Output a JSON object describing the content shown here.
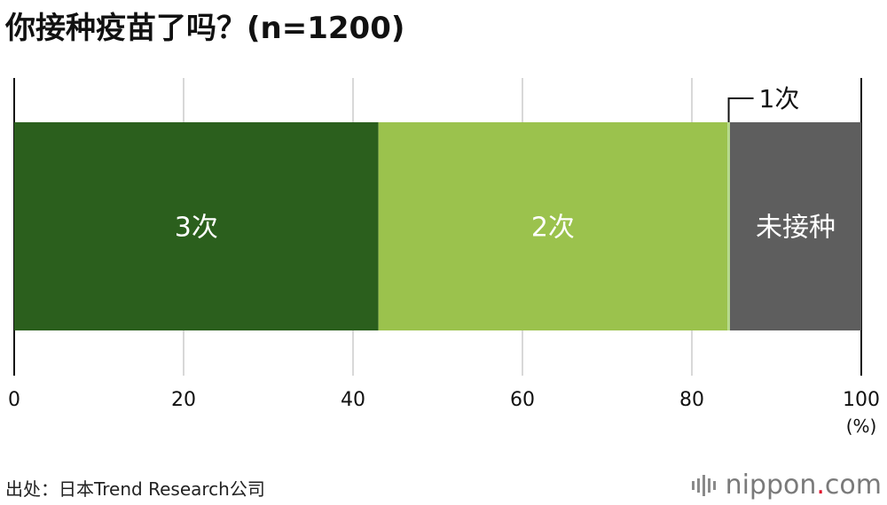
{
  "title": "你接种疫苗了吗？(n=1200)",
  "source": "出处：日本Trend Research公司",
  "logo": {
    "name": "nippon",
    "dot": ".",
    "tld": "com"
  },
  "colors": {
    "three_doses": "#2b5f1d",
    "two_doses": "#9bc24d",
    "one_dose": "#b5d98a",
    "unvaccinated": "#5e5e5e",
    "grid": "#cccccc",
    "axis": "#111111",
    "logo_dot": "#e0102c"
  },
  "chart_data": {
    "type": "bar",
    "orientation": "horizontal-stacked",
    "title": "你接种疫苗了吗？(n=1200)",
    "xlim": [
      0,
      100
    ],
    "x_ticks": [
      "0",
      "20",
      "40",
      "60",
      "80",
      "100"
    ],
    "x_unit": "(%)",
    "grid": true,
    "series": [
      {
        "name": "3次",
        "value": 43.0,
        "color": "#2b5f1d",
        "label": "3次",
        "label_position": "inside"
      },
      {
        "name": "2次",
        "value": 41.2,
        "color": "#9bc24d",
        "label": "2次",
        "label_position": "inside"
      },
      {
        "name": "1次",
        "value": 0.3,
        "color": "#b5d98a",
        "label": "1次",
        "label_position": "callout-above"
      },
      {
        "name": "未接种",
        "value": 15.5,
        "color": "#5e5e5e",
        "label": "未接种",
        "label_position": "inside"
      }
    ]
  }
}
